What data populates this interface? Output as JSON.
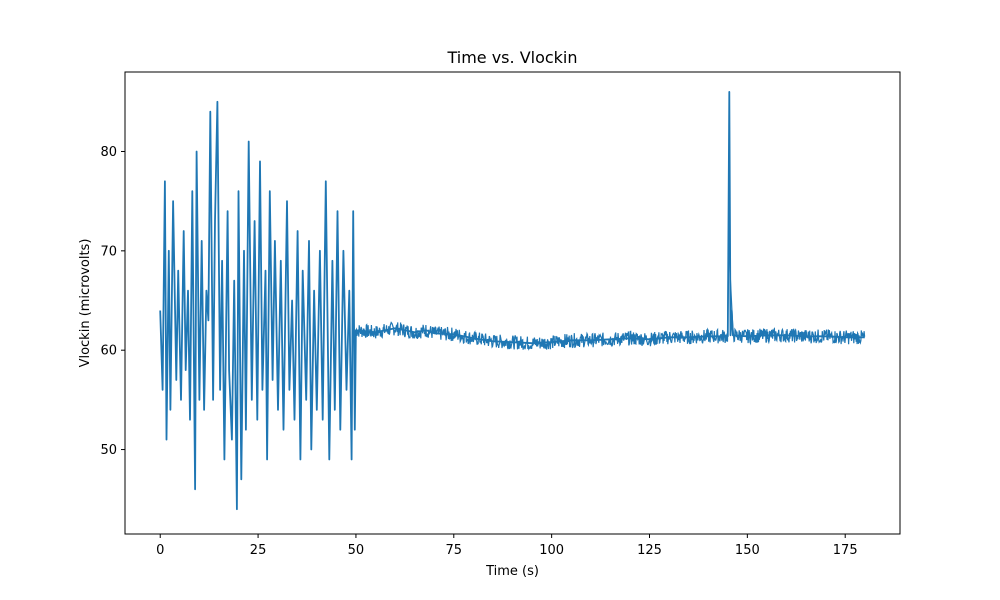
{
  "chart_data": {
    "type": "line",
    "title": "Time vs. Vlockin",
    "xlabel": "Time (s)",
    "ylabel": "Vlockin (microvolts)",
    "xlim": [
      -9,
      189
    ],
    "ylim": [
      41.5,
      88.0
    ],
    "xticks": [
      0,
      25,
      50,
      75,
      100,
      125,
      150,
      175
    ],
    "yticks": [
      50,
      60,
      70,
      80
    ],
    "grid": false,
    "legend": "none",
    "series": [
      {
        "color": "#1f77b4",
        "x": [
          0.0,
          0.6,
          1.2,
          1.6,
          2.2,
          2.6,
          3.3,
          4.1,
          4.6,
          5.3,
          6.0,
          6.5,
          7.1,
          7.6,
          8.2,
          8.9,
          9.3,
          10.0,
          10.6,
          11.2,
          11.8,
          12.3,
          12.8,
          13.5,
          14.0,
          14.6,
          15.3,
          15.8,
          16.4,
          17.2,
          17.6,
          18.3,
          18.9,
          19.6,
          20.0,
          20.7,
          21.4,
          21.9,
          22.6,
          23.4,
          24.1,
          24.8,
          25.5,
          26.1,
          26.9,
          27.3,
          28.0,
          28.7,
          29.3,
          30.1,
          30.8,
          31.5,
          32.4,
          33.0,
          33.7,
          34.3,
          35.1,
          35.8,
          36.4,
          37.3,
          38.0,
          38.6,
          39.3,
          40.0,
          40.8,
          41.5,
          42.3,
          43.2,
          44.0,
          44.6,
          45.3,
          46.0,
          46.8,
          47.6,
          48.3,
          48.9,
          49.3,
          49.7,
          50.0,
          55.0,
          60.0,
          65.0,
          68.0,
          70.0,
          75.0,
          80.0,
          85.0,
          90.0,
          95.0,
          100.0,
          105.0,
          110.0,
          115.0,
          120.0,
          125.0,
          130.0,
          135.0,
          140.0,
          145.0,
          145.4,
          145.7,
          146.0,
          146.3,
          150.0,
          155.0,
          160.0,
          165.0,
          170.0,
          175.0,
          180.0
        ],
        "values": [
          64,
          56,
          77,
          51,
          70,
          54,
          75,
          57,
          68,
          55,
          72,
          58,
          66,
          53,
          76,
          46,
          80,
          55,
          71,
          54,
          66,
          63,
          84,
          55,
          73,
          85,
          56,
          69,
          49,
          74,
          58,
          51,
          67,
          44,
          76,
          47,
          70,
          52,
          81,
          55,
          73,
          53,
          79,
          56,
          68,
          49,
          76,
          57,
          71,
          54,
          69,
          52,
          75,
          56,
          65,
          53,
          72,
          49,
          68,
          55,
          71,
          50,
          66,
          54,
          70,
          53,
          77,
          49,
          69,
          54,
          74,
          52,
          70,
          56,
          66,
          49,
          74,
          52,
          62,
          61.8,
          62.2,
          61.8,
          62.0,
          61.7,
          61.6,
          61.2,
          60.9,
          60.8,
          60.7,
          60.8,
          61.0,
          61.0,
          61.1,
          61.2,
          61.1,
          61.3,
          61.3,
          61.4,
          61.4,
          86.0,
          61.5,
          64.0,
          61.5,
          61.4,
          61.5,
          61.5,
          61.4,
          61.4,
          61.3,
          61.3
        ],
        "noise_amplitude": 1.1
      }
    ]
  }
}
